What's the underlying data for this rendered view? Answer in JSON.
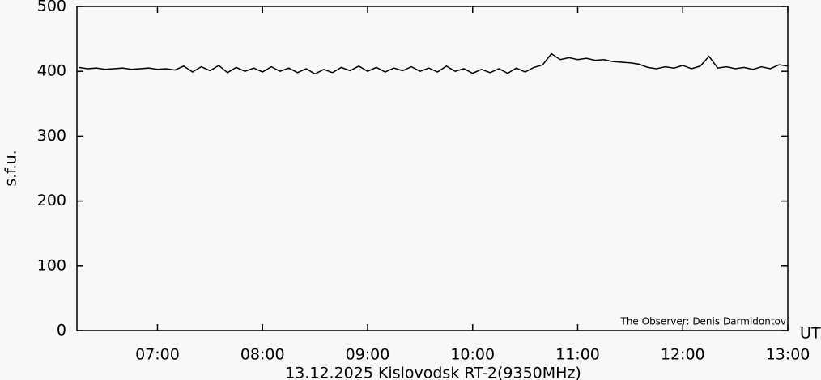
{
  "chart_data": {
    "type": "line",
    "title": "13.12.2025  Kislovodsk RT-2(9350MHz)",
    "ylabel": "s.f.u.",
    "xlabel": "UT",
    "annotation": "The Observer: Denis Darmidontov",
    "x": [
      "06:15",
      "06:20",
      "06:25",
      "06:30",
      "06:35",
      "06:40",
      "06:45",
      "06:50",
      "06:55",
      "07:00",
      "07:05",
      "07:10",
      "07:15",
      "07:20",
      "07:25",
      "07:30",
      "07:35",
      "07:40",
      "07:45",
      "07:50",
      "07:55",
      "08:00",
      "08:05",
      "08:10",
      "08:15",
      "08:20",
      "08:25",
      "08:30",
      "08:35",
      "08:40",
      "08:45",
      "08:50",
      "08:55",
      "09:00",
      "09:05",
      "09:10",
      "09:15",
      "09:20",
      "09:25",
      "09:30",
      "09:35",
      "09:40",
      "09:45",
      "09:50",
      "09:55",
      "10:00",
      "10:05",
      "10:10",
      "10:15",
      "10:20",
      "10:25",
      "10:30",
      "10:35",
      "10:40",
      "10:45",
      "10:50",
      "10:55",
      "11:00",
      "11:05",
      "11:10",
      "11:15",
      "11:20",
      "11:25",
      "11:30",
      "11:35",
      "11:40",
      "11:45",
      "11:50",
      "11:55",
      "12:00",
      "12:05",
      "12:10",
      "12:15",
      "12:20",
      "12:25",
      "12:30",
      "12:35",
      "12:40",
      "12:45",
      "12:50",
      "12:55",
      "13:00"
    ],
    "series": [
      {
        "name": "RT-2 9350MHz",
        "color": "#000000",
        "values": [
          406,
          404,
          405,
          403,
          404,
          405,
          403,
          404,
          405,
          403,
          404,
          402,
          408,
          399,
          407,
          401,
          409,
          398,
          406,
          400,
          405,
          399,
          407,
          400,
          405,
          398,
          404,
          396,
          403,
          398,
          406,
          401,
          408,
          400,
          406,
          399,
          405,
          401,
          407,
          400,
          405,
          399,
          408,
          400,
          404,
          397,
          403,
          398,
          404,
          397,
          405,
          399,
          406,
          410,
          427,
          418,
          421,
          418,
          420,
          417,
          418,
          415,
          414,
          413,
          411,
          406,
          404,
          407,
          405,
          409,
          404,
          408,
          423,
          405,
          407,
          404,
          406,
          403,
          407,
          404,
          410,
          408
        ]
      }
    ],
    "xlim": [
      "06:14",
      "13:00"
    ],
    "xticks": [
      "07:00",
      "08:00",
      "09:00",
      "10:00",
      "11:00",
      "12:00",
      "13:00"
    ],
    "ylim": [
      0,
      500
    ],
    "yticks": [
      0,
      100,
      200,
      300,
      400,
      500
    ],
    "grid": false
  }
}
